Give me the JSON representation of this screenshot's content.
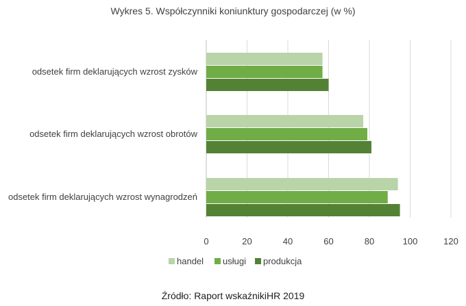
{
  "chart_data": {
    "type": "bar",
    "orientation": "horizontal",
    "title": "Wykres 5. Współczynniki koniunktury gospodarczej (w %)",
    "categories": [
      "odsetek firm deklarujących wzrost zysków",
      "odsetek firm deklarujących wzrost obrotów",
      "odsetek firm deklarujących wzrost wynagrodzeń"
    ],
    "series": [
      {
        "name": "handel",
        "color": "#b8d4a8",
        "values": [
          57,
          77,
          94
        ]
      },
      {
        "name": "usługi",
        "color": "#70ad47",
        "values": [
          57,
          79,
          89
        ]
      },
      {
        "name": "produkcja",
        "color": "#548235",
        "values": [
          60,
          81,
          95
        ]
      }
    ],
    "xlim": [
      0,
      120
    ],
    "xticks": [
      0,
      20,
      40,
      60,
      80,
      100,
      120
    ],
    "grid": true,
    "legend_position": "bottom"
  },
  "source": "Źródło: Raport wskaźnikiHR 2019"
}
